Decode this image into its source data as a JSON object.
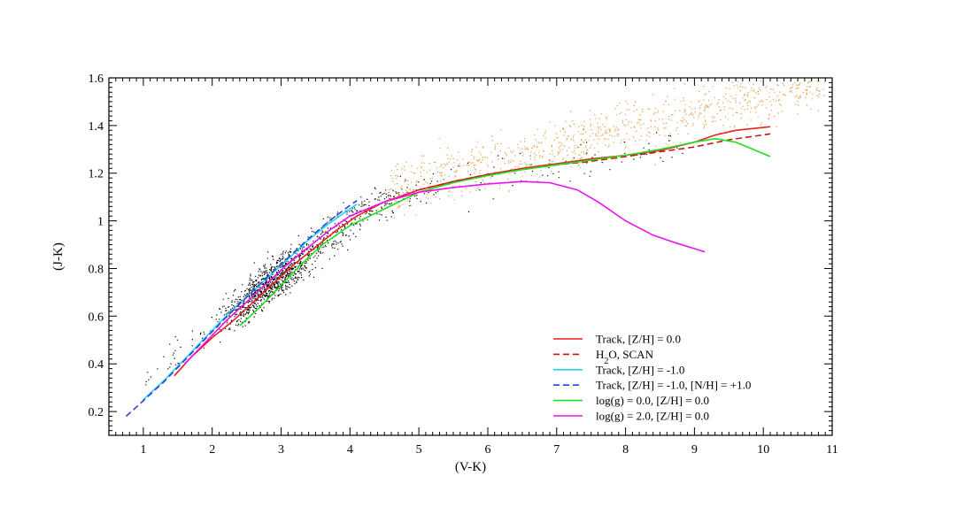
{
  "chart_data": {
    "type": "line",
    "title": "",
    "xlabel": "(V-K)",
    "ylabel": "(J-K)",
    "xlim": [
      0.5,
      11.0
    ],
    "ylim": [
      0.1,
      1.6
    ],
    "x_ticks": [
      "1",
      "2",
      "3",
      "4",
      "5",
      "6",
      "7",
      "8",
      "9",
      "10",
      "11"
    ],
    "y_ticks": [
      "0.2",
      "0.4",
      "0.6",
      "0.8",
      "1",
      "1.2",
      "1.4",
      "1.6"
    ],
    "grid": false,
    "legend_position": "bottom-right",
    "series": [
      {
        "name": "Track, [Z/H] = 0.0",
        "legend_html": "Track, [Z/H] = 0.0",
        "color": "#e8201e",
        "dash": "solid",
        "x": [
          1.45,
          1.7,
          2.0,
          2.3,
          2.6,
          2.9,
          3.2,
          3.5,
          3.8,
          4.1,
          4.5,
          5.0,
          5.5,
          6.0,
          6.5,
          7.0,
          7.5,
          8.0,
          8.5,
          9.0,
          9.3,
          9.6,
          10.1
        ],
        "y": [
          0.35,
          0.43,
          0.51,
          0.58,
          0.66,
          0.74,
          0.82,
          0.89,
          0.96,
          1.02,
          1.08,
          1.13,
          1.165,
          1.195,
          1.22,
          1.24,
          1.26,
          1.275,
          1.295,
          1.33,
          1.36,
          1.38,
          1.395
        ]
      },
      {
        "name": "H2O, SCAN",
        "legend_html": "H<tspan baseline-shift=\"sub\" font-size=\"10\">2</tspan>O, SCAN",
        "color": "#c81414",
        "dash": "dashed",
        "x": [
          5.0,
          5.5,
          6.0,
          6.5,
          7.0,
          7.5,
          8.0,
          8.5,
          9.0,
          9.5,
          10.1
        ],
        "y": [
          1.13,
          1.165,
          1.195,
          1.215,
          1.235,
          1.25,
          1.27,
          1.29,
          1.31,
          1.34,
          1.365
        ]
      },
      {
        "name": "Track, [Z/H] = -1.0",
        "legend_html": "Track, [Z/H] = -1.0",
        "color": "#22d8e8",
        "dash": "solid",
        "x": [
          1.0,
          1.3,
          1.6,
          1.9,
          2.2,
          2.5,
          2.8,
          3.1,
          3.4,
          3.7,
          3.95,
          4.1
        ],
        "y": [
          0.25,
          0.33,
          0.42,
          0.51,
          0.6,
          0.68,
          0.76,
          0.84,
          0.92,
          0.99,
          1.04,
          1.07
        ]
      },
      {
        "name": "Track, [Z/H] = -1.0, [N/H] = +1.0",
        "legend_html": "Track, [Z/H] = -1.0, [N/H] = +1.0",
        "color": "#2840e8",
        "dash": "dashed",
        "x": [
          0.75,
          1.0,
          1.3,
          1.6,
          1.9,
          2.2,
          2.5,
          2.8,
          3.1,
          3.4,
          3.7,
          4.0,
          4.1
        ],
        "y": [
          0.18,
          0.245,
          0.325,
          0.415,
          0.505,
          0.595,
          0.68,
          0.765,
          0.845,
          0.925,
          1.0,
          1.065,
          1.085
        ]
      },
      {
        "name": "log(g) = 0.0, [Z/H] = 0.0",
        "legend_html": "log(g) = 0.0, [Z/H] = 0.0",
        "color": "#22e022",
        "dash": "solid",
        "x": [
          2.4,
          2.7,
          3.0,
          3.3,
          3.6,
          4.0,
          4.5,
          5.0,
          5.5,
          6.0,
          6.5,
          7.0,
          7.5,
          8.0,
          8.5,
          9.0,
          9.3,
          9.6,
          10.1
        ],
        "y": [
          0.56,
          0.64,
          0.73,
          0.82,
          0.9,
          0.98,
          1.05,
          1.12,
          1.16,
          1.19,
          1.215,
          1.235,
          1.255,
          1.275,
          1.3,
          1.33,
          1.345,
          1.33,
          1.27
        ]
      },
      {
        "name": "log(g) = 2.0, [Z/H] = 0.0",
        "legend_html": "log(g) = 2.0, [Z/H] = 0.0",
        "color": "#ee10ee",
        "dash": "solid",
        "x": [
          1.6,
          1.9,
          2.2,
          2.5,
          2.8,
          3.1,
          3.4,
          3.7,
          4.0,
          4.5,
          5.0,
          5.5,
          6.0,
          6.5,
          6.9,
          7.3,
          7.6,
          8.0,
          8.4,
          8.7,
          9.15
        ],
        "y": [
          0.4,
          0.49,
          0.58,
          0.66,
          0.74,
          0.82,
          0.89,
          0.96,
          1.02,
          1.08,
          1.12,
          1.14,
          1.155,
          1.165,
          1.16,
          1.13,
          1.08,
          1.0,
          0.94,
          0.91,
          0.87
        ]
      }
    ],
    "scatter_colors": {
      "field": "#000000",
      "giants": "#e89a46"
    }
  }
}
